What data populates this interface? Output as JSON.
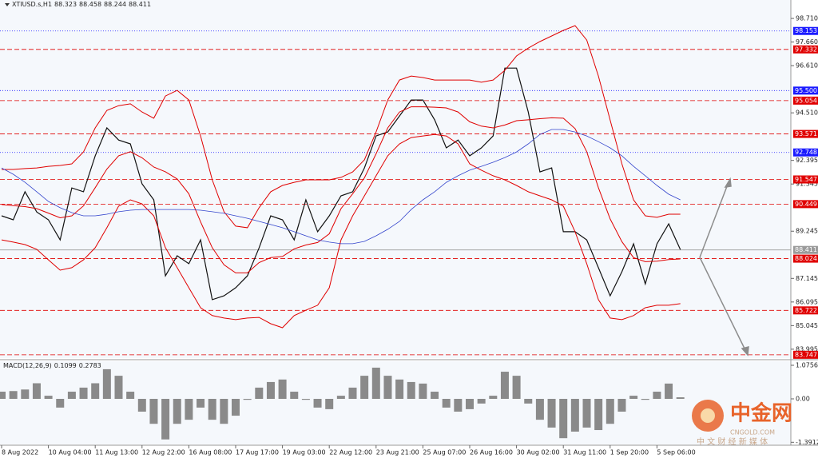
{
  "chart_data": {
    "type": "line",
    "symbol": "XTIUSD.s,H1",
    "ohlc": [
      88.323,
      88.458,
      88.244,
      88.411
    ],
    "categories": [
      "8 Aug 2022",
      null,
      null,
      null,
      "10 Aug 04:00",
      null,
      null,
      null,
      "11 Aug 13:00",
      null,
      null,
      null,
      "12 Aug 22:00",
      null,
      null,
      null,
      "16 Aug 08:00",
      null,
      null,
      null,
      "17 Aug 17:00",
      null,
      null,
      null,
      "19 Aug 03:00",
      null,
      null,
      null,
      "22 Aug 12:00",
      null,
      null,
      null,
      "23 Aug 21:00",
      null,
      null,
      null,
      "25 Aug 07:00",
      null,
      null,
      null,
      "26 Aug 16:00",
      null,
      null,
      null,
      "30 Aug 02:00",
      null,
      null,
      null,
      "31 Aug 11:00",
      null,
      null,
      null,
      "1 Sep 20:00",
      null,
      null,
      null,
      "5 Sep 06:00",
      null,
      null
    ],
    "series": [
      {
        "color": "#111111",
        "width": 1.2,
        "values": [
          89.93,
          89.75,
          91.0,
          90.1,
          89.75,
          88.86,
          91.17,
          91.0,
          92.6,
          93.84,
          93.3,
          93.13,
          91.35,
          90.64,
          87.26,
          88.15,
          87.8,
          88.86,
          86.2,
          86.37,
          86.73,
          87.26,
          88.5,
          89.93,
          89.75,
          88.86,
          90.64,
          89.22,
          89.93,
          90.82,
          91.0,
          92.06,
          93.48,
          93.66,
          94.37,
          95.08,
          95.08,
          94.2,
          92.95,
          93.3,
          92.6,
          92.95,
          93.48,
          96.5,
          96.5,
          94.55,
          91.88,
          92.06,
          89.22,
          89.22,
          88.86,
          87.62,
          86.37,
          87.44,
          88.68,
          86.9,
          88.68,
          89.57,
          88.43
        ]
      },
      {
        "color": "#e00000",
        "width": 1,
        "values": [
          91.99,
          91.99,
          92.03,
          92.06,
          92.13,
          92.17,
          92.24,
          92.77,
          93.84,
          94.62,
          94.83,
          94.91,
          94.55,
          94.27,
          95.26,
          95.51,
          95.08,
          93.48,
          91.53,
          90.11,
          89.47,
          89.4,
          90.29,
          91.0,
          91.28,
          91.42,
          91.53,
          91.53,
          91.53,
          91.64,
          91.88,
          92.42,
          93.66,
          95.08,
          95.97,
          96.15,
          96.08,
          95.97,
          95.97,
          95.97,
          95.97,
          95.87,
          95.97,
          96.4,
          97.04,
          97.39,
          97.68,
          97.93,
          98.18,
          98.39,
          97.75,
          96.15,
          94.19,
          92.24,
          90.64,
          89.93,
          89.86,
          90.0,
          90.0
        ]
      },
      {
        "color": "#e00000",
        "width": 1,
        "values": [
          90.43,
          90.38,
          90.34,
          90.25,
          90.05,
          89.84,
          89.93,
          90.37,
          91.18,
          92.01,
          92.6,
          92.78,
          92.51,
          92.1,
          91.89,
          91.57,
          90.91,
          89.66,
          88.51,
          87.75,
          87.39,
          87.39,
          87.85,
          88.07,
          88.12,
          88.46,
          88.63,
          88.74,
          89.13,
          90.25,
          90.91,
          91.62,
          92.69,
          93.84,
          94.55,
          94.78,
          94.78,
          94.76,
          94.73,
          94.55,
          94.11,
          93.92,
          93.84,
          93.97,
          94.16,
          94.2,
          94.25,
          94.29,
          94.27,
          93.81,
          92.78,
          91.18,
          89.79,
          88.78,
          88.07,
          87.89,
          87.91,
          87.98,
          88.01
        ]
      },
      {
        "color": "#e00000",
        "width": 1,
        "values": [
          88.86,
          88.76,
          88.65,
          88.44,
          87.97,
          87.51,
          87.62,
          87.97,
          88.51,
          89.4,
          90.36,
          90.64,
          90.46,
          89.93,
          88.51,
          87.62,
          86.73,
          85.84,
          85.49,
          85.38,
          85.31,
          85.38,
          85.41,
          85.13,
          84.95,
          85.49,
          85.73,
          85.95,
          86.73,
          88.86,
          89.93,
          90.82,
          91.71,
          92.6,
          93.13,
          93.41,
          93.48,
          93.55,
          93.48,
          93.13,
          92.24,
          91.96,
          91.71,
          91.53,
          91.28,
          91.0,
          90.82,
          90.64,
          90.36,
          89.22,
          87.8,
          86.2,
          85.38,
          85.31,
          85.49,
          85.84,
          85.95,
          85.95,
          86.02
        ]
      },
      {
        "color": "#3344cc",
        "width": 0.8,
        "values": [
          92.06,
          91.78,
          91.42,
          91.0,
          90.57,
          90.29,
          90.07,
          89.93,
          89.93,
          90.0,
          90.11,
          90.18,
          90.21,
          90.21,
          90.21,
          90.21,
          90.21,
          90.18,
          90.11,
          90.04,
          89.93,
          89.82,
          89.68,
          89.54,
          89.4,
          89.22,
          89.04,
          88.86,
          88.76,
          88.69,
          88.69,
          88.79,
          89.04,
          89.33,
          89.68,
          90.21,
          90.64,
          91.0,
          91.42,
          91.71,
          91.96,
          92.13,
          92.31,
          92.52,
          92.77,
          93.13,
          93.55,
          93.77,
          93.77,
          93.66,
          93.48,
          93.23,
          92.95,
          92.6,
          92.13,
          91.71,
          91.28,
          90.89,
          90.64
        ]
      }
    ],
    "ylim": [
      83.6,
      99.53
    ],
    "yticks": [
      {
        "value": 98.71,
        "label": "98.710"
      },
      {
        "value": 97.66,
        "label": "97.660"
      },
      {
        "value": 96.61,
        "label": "96.610"
      },
      {
        "value": 94.51,
        "label": "94.510"
      },
      92.395,
      91.345,
      89.245,
      87.145,
      86.095,
      85.045,
      83.995
    ],
    "levels": [
      {
        "value": 98.153,
        "color": "#1a1aff",
        "style": "dotted"
      },
      {
        "value": 97.332,
        "color": "#e00000",
        "style": "dashed"
      },
      {
        "value": 95.5,
        "label": "95.500",
        "color": "#1a1aff",
        "style": "dotted"
      },
      {
        "value": 95.054,
        "color": "#e00000",
        "style": "dashed"
      },
      {
        "value": 93.571,
        "color": "#e00000",
        "style": "dashed"
      },
      {
        "value": 92.748,
        "color": "#1a1aff",
        "style": "dotted"
      },
      {
        "value": 91.547,
        "color": "#e00000",
        "style": "dashed"
      },
      {
        "value": 90.449,
        "color": "#e00000",
        "style": "dashed"
      },
      {
        "value": 88.411,
        "color": "#9a9a9a",
        "style": "solid"
      },
      {
        "value": 88.024,
        "color": "#e00000",
        "style": "dashed"
      },
      {
        "value": 85.722,
        "color": "#e00000",
        "style": "dashed"
      },
      {
        "value": 83.747,
        "color": "#e00000",
        "style": "dashed"
      }
    ],
    "macd": {
      "label": "MACD(12,26,9)",
      "values": [
        0.1099,
        0.2783
      ],
      "color": "#8a8a8a",
      "ylim": [
        -1.46,
        1.204
      ],
      "yticks": [
        1.0756,
        {
          "value": 0,
          "label": "0.00"
        },
        -1.3912
      ],
      "histogram": [
        0.23,
        0.25,
        0.3,
        0.5,
        0.1,
        -0.28,
        0.23,
        0.36,
        0.5,
        0.95,
        0.74,
        0.23,
        -0.41,
        -0.8,
        -1.3,
        -0.8,
        -0.67,
        -0.28,
        -0.67,
        -0.8,
        -0.54,
        -0.03,
        0.36,
        0.54,
        0.62,
        0.23,
        -0.03,
        -0.28,
        -0.33,
        0.1,
        0.36,
        0.74,
        1.0,
        0.74,
        0.62,
        0.54,
        0.49,
        0.23,
        -0.28,
        -0.41,
        -0.33,
        -0.15,
        0.1,
        0.87,
        0.74,
        -0.15,
        -0.67,
        -0.92,
        -1.26,
        -1.05,
        -0.92,
        -1.0,
        -0.8,
        -0.41,
        0.1,
        -0.03,
        0.23,
        0.49,
        0.05
      ]
    },
    "watermark": {
      "title": "中金网",
      "url": "CNGOLD.COM",
      "tagline": "中 文 财 经 新 媒 体"
    }
  }
}
